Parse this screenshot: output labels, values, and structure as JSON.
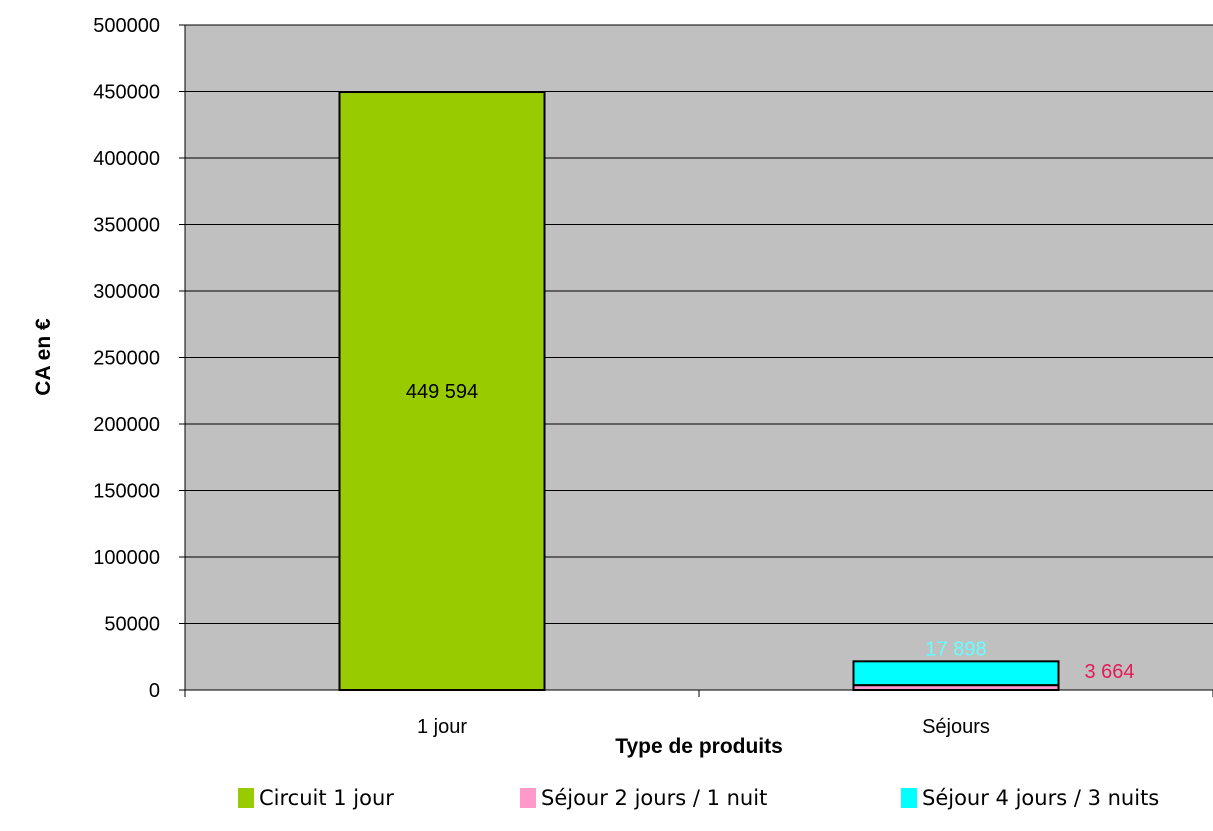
{
  "chart_data": {
    "type": "bar",
    "stacked": true,
    "categories": [
      "1 jour",
      "Séjours"
    ],
    "series": [
      {
        "name": "Circuit 1 jour",
        "values": [
          449594,
          0
        ],
        "color": "#99CC00",
        "data_labels": [
          "449 594",
          ""
        ],
        "label_color": "#000000"
      },
      {
        "name": "Séjour 2 jours / 1 nuit",
        "values": [
          0,
          3664
        ],
        "color": "#FF99CC",
        "data_labels": [
          "",
          "3 664"
        ],
        "label_color": "#E6195A"
      },
      {
        "name": "Séjour 4 jours / 3 nuits",
        "values": [
          0,
          17898
        ],
        "color": "#00FFFF",
        "data_labels": [
          "",
          "17 898"
        ],
        "label_color": "#66FFFF"
      }
    ],
    "xlabel": "Type de produits",
    "ylabel": "CA en €",
    "ylim": [
      0,
      500000
    ],
    "yticks": [
      0,
      50000,
      100000,
      150000,
      200000,
      250000,
      300000,
      350000,
      400000,
      450000,
      500000
    ],
    "grid": true,
    "plot_background": "#C0C0C0",
    "legend_position": "bottom"
  }
}
